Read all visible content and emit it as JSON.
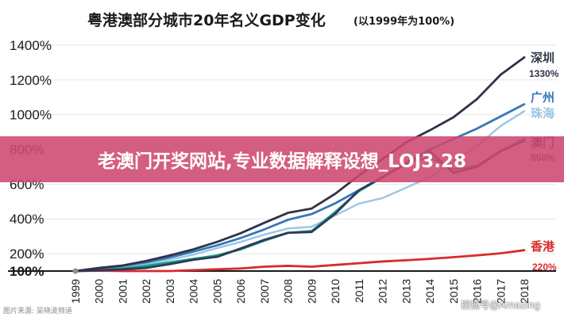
{
  "chart_data": {
    "type": "line",
    "title": "粤港澳部分城市20年名义GDP变化",
    "subtitle": "(以1999年为100%)",
    "x": [
      "1999",
      "2000",
      "2001",
      "2002",
      "2003",
      "2004",
      "2005",
      "2006",
      "2007",
      "2008",
      "2009",
      "2010",
      "2011",
      "2012",
      "2013",
      "2014",
      "2015",
      "2016",
      "2017",
      "2018"
    ],
    "yticks": [
      "1400%",
      "1200%",
      "1000%",
      "800%",
      "600%",
      "400%",
      "200%",
      "100%"
    ],
    "ylim": [
      100,
      1400
    ],
    "y_unit": "%",
    "grid": true,
    "series": [
      {
        "name": "深圳",
        "color": "#2e3447",
        "end_label": "1330%",
        "values": [
          100,
          118,
          132,
          158,
          190,
          225,
          268,
          318,
          378,
          435,
          460,
          545,
          650,
          745,
          840,
          910,
          985,
          1090,
          1230,
          1330
        ]
      },
      {
        "name": "广州",
        "color": "#3477b8",
        "end_label": "",
        "values": [
          100,
          115,
          130,
          150,
          178,
          212,
          248,
          290,
          340,
          395,
          428,
          490,
          565,
          640,
          720,
          800,
          860,
          920,
          990,
          1060
        ]
      },
      {
        "name": "珠海",
        "color": "#9cc5e4",
        "end_label": "",
        "values": [
          100,
          108,
          122,
          140,
          165,
          195,
          232,
          268,
          310,
          345,
          355,
          420,
          488,
          520,
          580,
          640,
          730,
          820,
          935,
          1020
        ]
      },
      {
        "name": "澳门",
        "color": "#2f3a5a",
        "end_label": "850%",
        "values": [
          100,
          104,
          110,
          118,
          140,
          165,
          182,
          230,
          280,
          320,
          325,
          430,
          565,
          640,
          720,
          790,
          665,
          700,
          790,
          850
        ]
      },
      {
        "name": "",
        "color": "#14a085",
        "end_label": "",
        "values": [
          100,
          106,
          115,
          130,
          150,
          170,
          190,
          225,
          275,
          320,
          330,
          440,
          560,
          640,
          720,
          755,
          685,
          705,
          790,
          860
        ]
      },
      {
        "name": "香港",
        "color": "#d92a2a",
        "end_label": "220%",
        "values": [
          100,
          102,
          100,
          100,
          100,
          105,
          110,
          115,
          125,
          130,
          125,
          135,
          145,
          155,
          162,
          170,
          180,
          190,
          202,
          220
        ]
      }
    ],
    "xlabel": "",
    "ylabel": ""
  },
  "overlay": {
    "banner_text": "老澳门开奖网站,专业数据解释设想_LOJ3.28",
    "credit_text": "图片来源: 吴晓波频道",
    "watermark_text": "搜狐号@Amazing"
  },
  "colors": {
    "banner": "#ce4870",
    "hong_kong": "#d92a2a",
    "guangzhou": "#3477b8",
    "zhuhai": "#9cc5e4",
    "shenzhen": "#2e3447",
    "macau": "#2f3a5a"
  }
}
